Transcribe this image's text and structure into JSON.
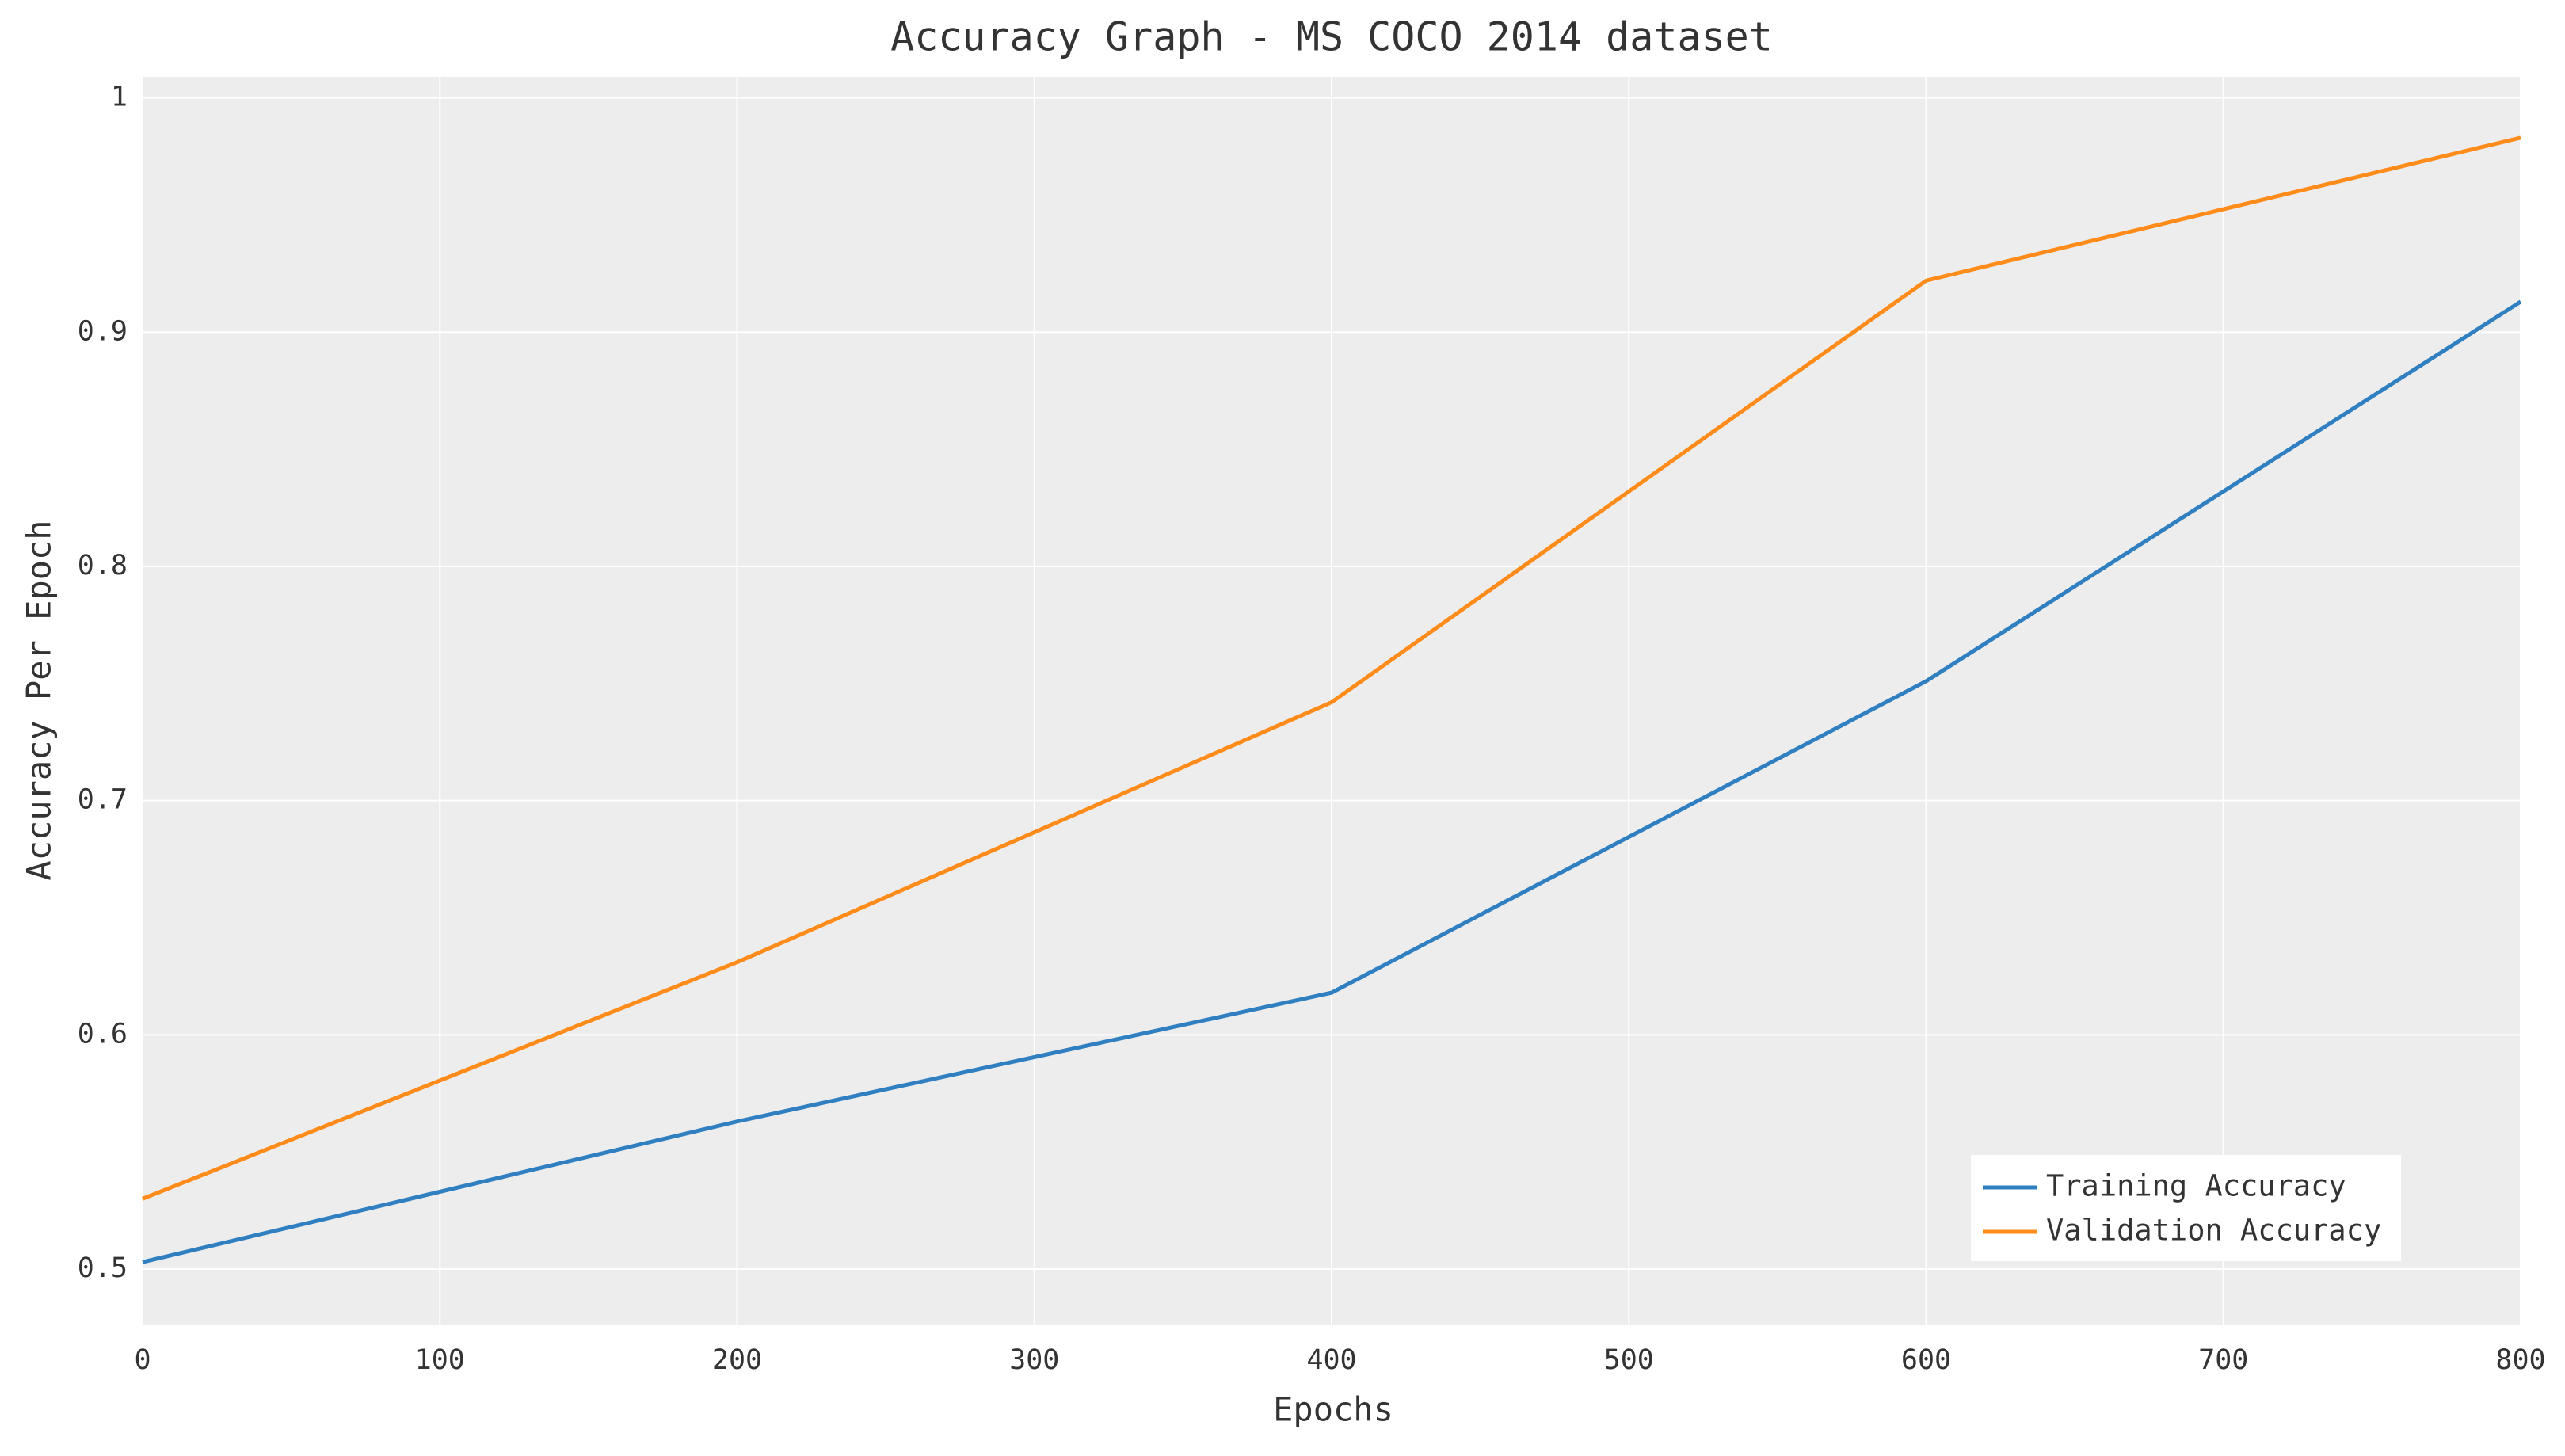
{
  "chart_data": {
    "type": "line",
    "title": "Accuracy Graph - MS COCO 2014 dataset",
    "x_label": "Epochs",
    "y_label": "Accuracy Per Epoch",
    "x": [
      0,
      200,
      400,
      600,
      800
    ],
    "series": [
      {
        "name": "Training Accuracy",
        "color": "#2f7fc1",
        "values": [
          0.503,
          0.563,
          0.618,
          0.751,
          0.913
        ]
      },
      {
        "name": "Validation Accuracy",
        "color": "#ff8c1a",
        "values": [
          0.53,
          0.631,
          0.742,
          0.922,
          0.983
        ]
      }
    ],
    "xlim": [
      0,
      800
    ],
    "xticks": [
      0,
      100,
      200,
      300,
      400,
      500,
      600,
      700,
      800
    ],
    "ylim": [
      0.476,
      1.009
    ],
    "yticks": [
      0.5,
      0.6,
      0.7,
      0.8,
      0.9,
      1
    ],
    "grid": true,
    "legend": "lower right"
  }
}
